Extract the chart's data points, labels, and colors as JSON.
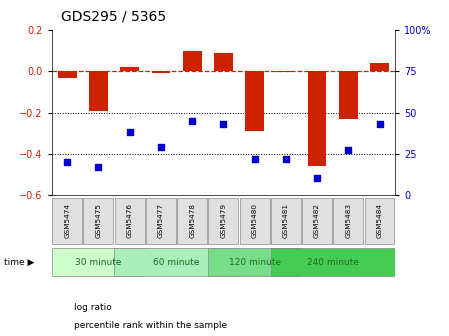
{
  "title": "GDS295 / 5365",
  "samples": [
    "GSM5474",
    "GSM5475",
    "GSM5476",
    "GSM5477",
    "GSM5478",
    "GSM5479",
    "GSM5480",
    "GSM5481",
    "GSM5482",
    "GSM5483",
    "GSM5484"
  ],
  "log_ratio": [
    -0.03,
    -0.19,
    0.02,
    -0.01,
    0.1,
    0.09,
    -0.29,
    -0.005,
    -0.46,
    -0.23,
    0.04
  ],
  "percentile": [
    20,
    17,
    38,
    29,
    45,
    43,
    22,
    22,
    10,
    27,
    43
  ],
  "groups": [
    {
      "label": "30 minute",
      "start": 0,
      "end": 2,
      "color": "#ccffcc"
    },
    {
      "label": "60 minute",
      "start": 2,
      "end": 5,
      "color": "#aaeebb"
    },
    {
      "label": "120 minute",
      "start": 5,
      "end": 7,
      "color": "#77dd88"
    },
    {
      "label": "240 minute",
      "start": 7,
      "end": 10,
      "color": "#44cc55"
    }
  ],
  "bar_color": "#cc2200",
  "dot_color": "#0000cc",
  "ylim_left": [
    -0.6,
    0.2
  ],
  "ylim_right": [
    0,
    100
  ],
  "yticks_left": [
    -0.6,
    -0.4,
    -0.2,
    0.0,
    0.2
  ],
  "yticks_right": [
    0,
    25,
    50,
    75,
    100
  ],
  "hline_y": 0.0,
  "dotted_lines": [
    -0.2,
    -0.4
  ],
  "background_color": "#ffffff",
  "title_fontsize": 10,
  "tick_fontsize": 7
}
